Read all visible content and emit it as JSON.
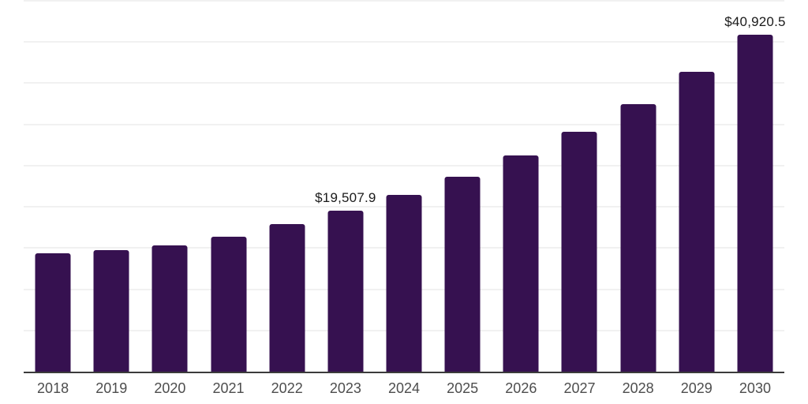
{
  "chart_data": {
    "type": "bar",
    "title": "",
    "xlabel": "",
    "ylabel": "",
    "categories": [
      "2018",
      "2019",
      "2020",
      "2021",
      "2022",
      "2023",
      "2024",
      "2025",
      "2026",
      "2027",
      "2028",
      "2029",
      "2030"
    ],
    "values": [
      14400,
      14780,
      15330,
      16380,
      17920,
      19507.9,
      21460,
      23630,
      26250,
      29090,
      32500,
      36340,
      40920.5
    ],
    "data_labels": [
      null,
      null,
      null,
      null,
      null,
      "$19,507.9",
      null,
      null,
      null,
      null,
      null,
      null,
      "$40,920.5"
    ],
    "ylim": [
      0,
      45000
    ],
    "gridline_step": 5000,
    "grid": true,
    "legend": false,
    "y_axis_labels_visible": false,
    "bar_color": "#361150",
    "gridline_color": "#f1f1f1",
    "axis_line_color": "#3b3b3b",
    "tick_label_color": "#4d4d4d",
    "value_label_color": "#1a1a1a",
    "background_color": "#ffffff"
  }
}
